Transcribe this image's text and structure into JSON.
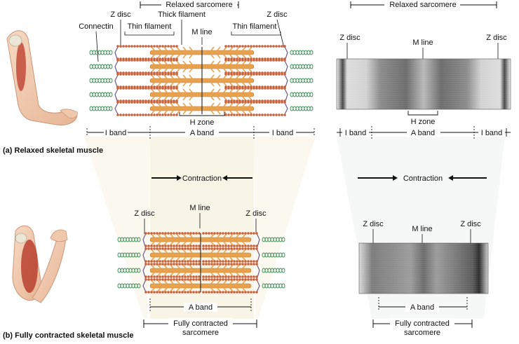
{
  "panel_a": {
    "caption": "(a) Relaxed skeletal muscle",
    "diagram": {
      "relaxed_sarcomere": "Relaxed sarcomere",
      "z_disc": "Z disc",
      "thick_filament": "Thick filament",
      "thin_filament": "Thin filament",
      "connectin": "Connectin",
      "m_line": "M line",
      "h_zone": "H zone",
      "i_band": "I band",
      "a_band": "A band"
    },
    "micrograph": {
      "relaxed_sarcomere": "Relaxed sarcomere",
      "z_disc": "Z disc",
      "m_line": "M line",
      "h_zone": "H zone",
      "i_band": "I band",
      "a_band": "A band"
    }
  },
  "contraction_label": "Contraction",
  "panel_b": {
    "caption": "(b) Fully contracted skeletal muscle",
    "diagram": {
      "z_disc": "Z disc",
      "m_line": "M line",
      "a_band": "A band",
      "contracted_sarcomere_1": "Fully contracted",
      "contracted_sarcomere_2": "sarcomere"
    },
    "micrograph": {
      "z_disc": "Z disc",
      "m_line": "M line",
      "a_band": "A band",
      "contracted_sarcomere_1": "Fully contracted",
      "contracted_sarcomere_2": "sarcomere"
    }
  },
  "colors": {
    "thick_filament": "#e8a24e",
    "thin_filament_bead": "#c8603a",
    "connectin": "#2f8a4a",
    "z_disc_line": "#6a5a8a",
    "zone_shading": "#f3ecd2"
  }
}
